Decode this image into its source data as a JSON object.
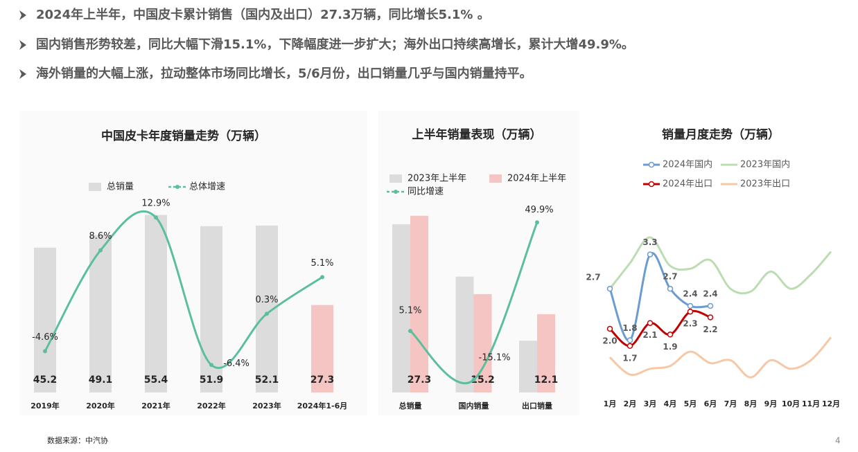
{
  "bullets": [
    "2024年上半年，中国皮卡累计销售（国内及出口）27.3万辆，同比增长5.1% 。",
    "国内销售形势较差，同比大幅下滑15.1%，下降幅度进一步扩大；海外出口持续高增长，累计大增49.9%。",
    "海外销量的大幅上涨，拉动整体市场同比增长，5/6月份，出口销量几乎与国内销量持平。"
  ],
  "chart_data": [
    {
      "type": "bar",
      "title": "中国皮卡年度销量走势（万辆）",
      "categories": [
        "2019年",
        "2020年",
        "2021年",
        "2022年",
        "2023年",
        "2024年1-6月"
      ],
      "series": [
        {
          "name": "总销量",
          "type": "bar",
          "color": "#dcdcdc",
          "colors": [
            "#dcdcdc",
            "#dcdcdc",
            "#dcdcdc",
            "#dcdcdc",
            "#dcdcdc",
            "#f4c5c3"
          ],
          "values": [
            45.2,
            49.1,
            55.4,
            51.9,
            52.1,
            27.3
          ]
        },
        {
          "name": "总体增速",
          "type": "line",
          "axis": "y2",
          "color": "#5bbf9b",
          "values": [
            -4.6,
            8.6,
            12.9,
            -6.4,
            0.3,
            5.1
          ],
          "value_labels": [
            "-4.6%",
            "8.6%",
            "12.9%",
            "-6.4%",
            "0.3%",
            "5.1%"
          ]
        }
      ],
      "ylim": [
        0,
        62
      ],
      "y2lim": [
        -10,
        16
      ]
    },
    {
      "type": "bar",
      "title": "上半年销量表现（万辆）",
      "categories": [
        "总销量",
        "国内销量",
        "出口销量"
      ],
      "series": [
        {
          "name": "2023年上半年",
          "type": "bar",
          "color": "#dcdcdc",
          "values": [
            26.0,
            17.9,
            8.0
          ]
        },
        {
          "name": "2024年上半年",
          "type": "bar",
          "color": "#f4c5c3",
          "values": [
            27.3,
            15.2,
            12.1
          ],
          "labeled": true
        },
        {
          "name": "同比增速",
          "type": "line",
          "axis": "y2",
          "color": "#5bbf9b",
          "values": [
            5.1,
            -15.1,
            49.9
          ],
          "value_labels": [
            "5.1%",
            "-15.1%",
            "49.9%"
          ]
        }
      ],
      "ylim": [
        0,
        30.7
      ],
      "y2lim": [
        -20.3,
        61.7
      ]
    },
    {
      "type": "line",
      "title": "销量月度走势（万辆）",
      "categories": [
        "1月",
        "2月",
        "3月",
        "4月",
        "5月",
        "6月",
        "7月",
        "8月",
        "9月",
        "10月",
        "11月",
        "12月"
      ],
      "series": [
        {
          "name": "2024年国内",
          "color": "#6a9bd1",
          "markers": true,
          "values": [
            2.7,
            1.8,
            3.3,
            2.7,
            2.4,
            2.4,
            null,
            null,
            null,
            null,
            null,
            null
          ],
          "value_labels": [
            "2.7",
            "1.8",
            "3.3",
            "2.7",
            "2.4",
            "2.4",
            null,
            null,
            null,
            null,
            null,
            null
          ]
        },
        {
          "name": "2023年国内",
          "color": "#bcdcb2",
          "values": [
            2.7,
            3.15,
            3.6,
            3.1,
            3.05,
            3.2,
            2.7,
            2.65,
            3.0,
            2.7,
            2.95,
            3.35
          ]
        },
        {
          "name": "2024年出口",
          "color": "#c00000",
          "markers": true,
          "values": [
            2.0,
            1.7,
            2.1,
            1.9,
            2.3,
            2.2,
            null,
            null,
            null,
            null,
            null,
            null
          ],
          "value_labels": [
            "2.0",
            "1.7",
            "2.1",
            "1.9",
            "2.3",
            "2.2",
            null,
            null,
            null,
            null,
            null,
            null
          ]
        },
        {
          "name": "2023年出口",
          "color": "#f6c8a6",
          "values": [
            1.5,
            1.2,
            1.3,
            1.35,
            1.6,
            1.4,
            1.45,
            1.15,
            1.45,
            1.3,
            1.45,
            1.85
          ]
        }
      ],
      "ylim": [
        0.85,
        4.3
      ]
    }
  ],
  "footer": "数据来源：中汽协",
  "page_number": "4"
}
